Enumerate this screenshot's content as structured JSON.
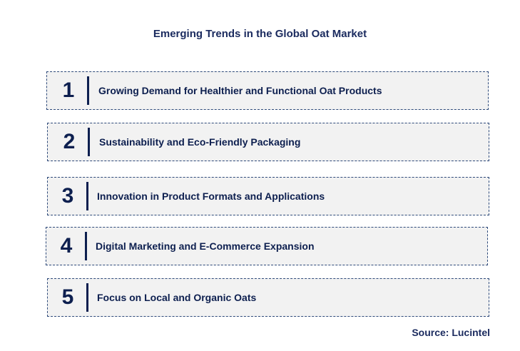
{
  "title": "Emerging Trends in the Global Oat Market",
  "trends": [
    {
      "number": "1",
      "label": "Growing Demand for Healthier and Functional Oat Products"
    },
    {
      "number": "2",
      "label": "Sustainability and Eco-Friendly Packaging"
    },
    {
      "number": "3",
      "label": "Innovation in Product Formats and Applications"
    },
    {
      "number": "4",
      "label": "Digital Marketing and E-Commerce Expansion"
    },
    {
      "number": "5",
      "label": "Focus on Local and Organic Oats"
    }
  ],
  "source": "Source: Lucintel",
  "colors": {
    "text": "#0d1f4f",
    "box_fill": "#f2f2f2",
    "box_border": "#2e4a7a"
  }
}
